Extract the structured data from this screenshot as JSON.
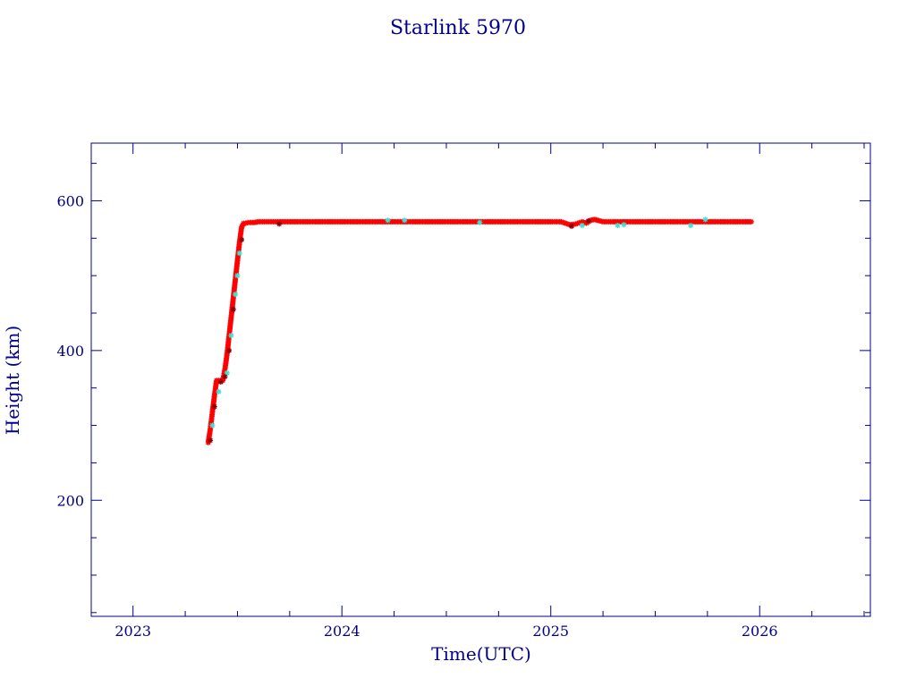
{
  "chart_data": {
    "type": "scatter",
    "title": "Starlink 5970",
    "xlabel": "Time(UTC)",
    "ylabel": "Height (km)",
    "xlim": [
      2022.8,
      2026.53
    ],
    "ylim": [
      45,
      677
    ],
    "x_ticks": [
      2023,
      2024,
      2025,
      2026
    ],
    "x_tick_labels": [
      "2023",
      "2024",
      "2025",
      "2026"
    ],
    "x_minor_step": 0.25,
    "y_ticks": [
      200,
      400,
      600
    ],
    "y_tick_labels": [
      "200",
      "400",
      "600"
    ],
    "y_minor_step": 50,
    "grid": false,
    "series": [
      {
        "color": "#ff0000",
        "marker": "star",
        "x": [
          2023.36,
          2023.37,
          2023.38,
          2023.39,
          2023.4,
          2023.41,
          2023.42,
          2023.43,
          2023.44,
          2023.45,
          2023.46,
          2023.47,
          2023.48,
          2023.49,
          2023.5,
          2023.51,
          2023.52,
          2023.53,
          2023.54,
          2023.55,
          2023.56,
          2023.58,
          2023.6,
          2023.65,
          2023.7,
          2023.8,
          2023.9,
          2024.0,
          2024.1,
          2024.2,
          2024.3,
          2024.4,
          2024.5,
          2024.6,
          2024.7,
          2024.8,
          2024.9,
          2025.0,
          2025.05,
          2025.09,
          2025.12,
          2025.15,
          2025.17,
          2025.19,
          2025.21,
          2025.25,
          2025.3,
          2025.4,
          2025.5,
          2025.6,
          2025.7,
          2025.8,
          2025.9,
          2025.96
        ],
        "y": [
          277,
          295,
          318,
          340,
          360,
          360,
          360,
          360,
          375,
          395,
          420,
          445,
          470,
          495,
          520,
          545,
          565,
          570,
          570,
          571,
          571,
          571,
          572,
          572,
          572,
          572,
          572,
          572,
          572,
          572,
          572,
          572,
          572,
          572,
          572,
          572,
          572,
          572,
          572,
          568,
          569,
          572,
          570,
          574,
          575,
          572,
          572,
          572,
          572,
          572,
          572,
          572,
          572,
          572
        ]
      },
      {
        "color": "#40e0d0",
        "marker": "star",
        "x": [
          2023.38,
          2023.41,
          2023.45,
          2023.47,
          2023.49,
          2023.5,
          2023.51,
          2024.22,
          2024.3,
          2024.66,
          2025.15,
          2025.32,
          2025.35,
          2025.67,
          2025.74
        ],
        "y": [
          300,
          345,
          370,
          420,
          475,
          500,
          530,
          574,
          574,
          571,
          567,
          567,
          568,
          567,
          575
        ]
      },
      {
        "color": "#8b0000",
        "marker": "star",
        "x": [
          2023.37,
          2023.39,
          2023.42,
          2023.44,
          2023.46,
          2023.48,
          2023.52,
          2023.7,
          2025.1,
          2025.18
        ],
        "y": [
          280,
          325,
          358,
          365,
          400,
          455,
          548,
          569,
          566,
          573
        ]
      }
    ]
  }
}
